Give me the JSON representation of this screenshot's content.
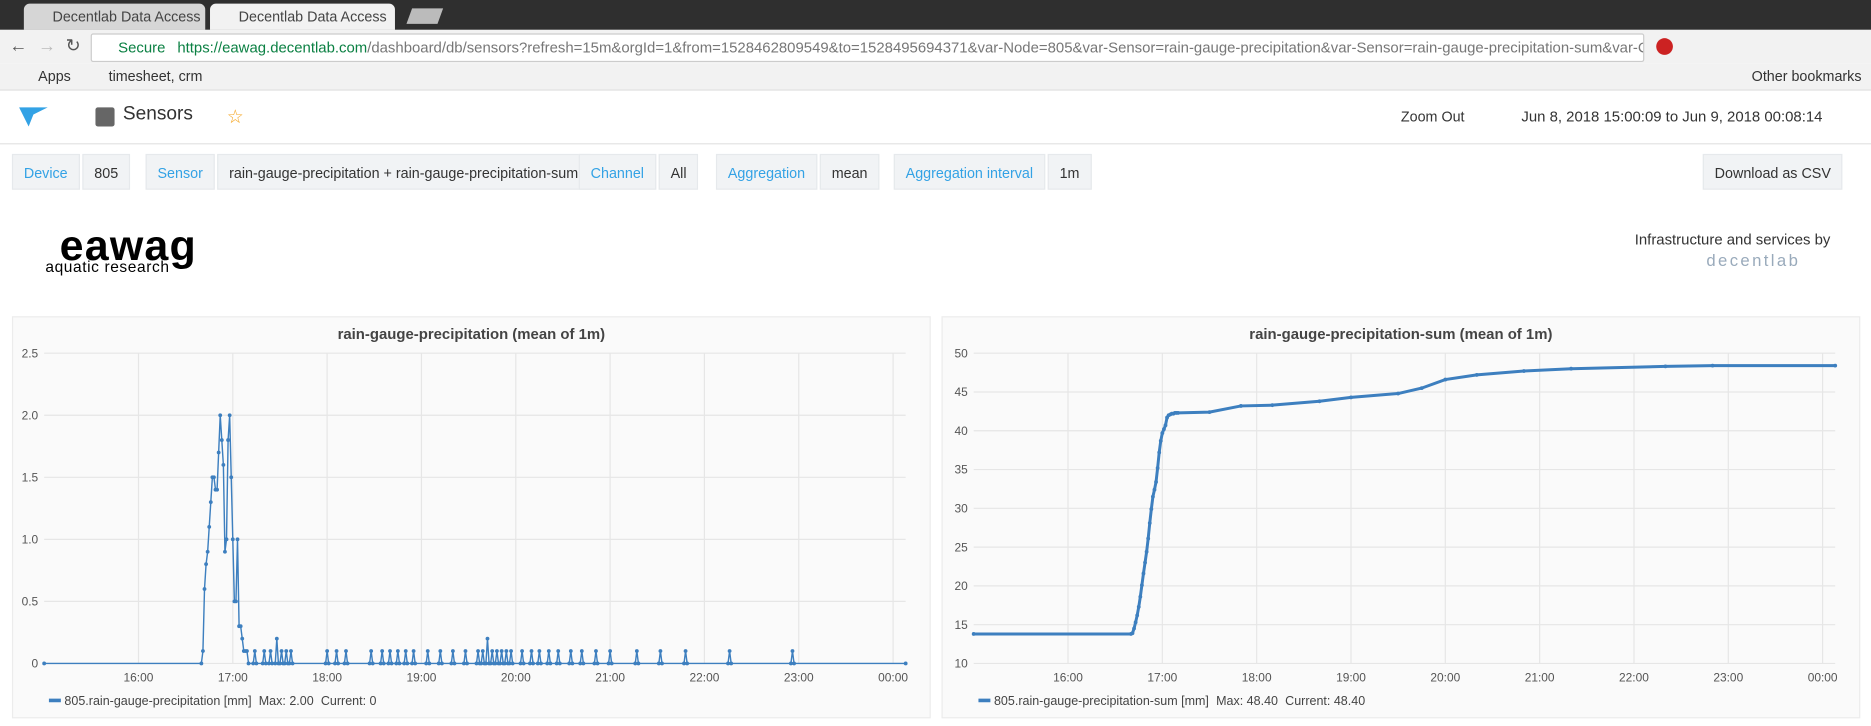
{
  "browser": {
    "tabs": [
      "Decentlab Data Access",
      "Decentlab Data Access"
    ],
    "secure": "Secure",
    "url_host": "https://eawag.decentlab.com",
    "url_path": "/dashboard/db/sensors?refresh=15m&orgId=1&from=1528462809549&to=1528495694371&var-Node=805&var-Sensor=rain-gauge-precipitation&var-Sensor=rain-gauge-precipitation-sum&var-Cha...",
    "bookmarks": [
      "Apps",
      "timesheet, crm"
    ],
    "other_bookmarks": "Other bookmarks"
  },
  "header": {
    "dashboard": "Sensors",
    "zoom_out": "Zoom Out",
    "time_range": "Jun 8, 2018 15:00:09 to Jun 9, 2018 00:08:14"
  },
  "variables": [
    {
      "label": "Device",
      "value": "805"
    },
    {
      "label": "Sensor",
      "value": "rain-gauge-precipitation + rain-gauge-precipitation-sum"
    },
    {
      "label": "Channel",
      "value": "All"
    },
    {
      "label": "Aggregation",
      "value": "mean"
    },
    {
      "label": "Aggregation interval",
      "value": "1m"
    }
  ],
  "download": "Download as CSV",
  "logo": {
    "name": "eawag",
    "tagline": "aquatic research",
    "infra": "Infrastructure and services by",
    "brand": "decentlab"
  },
  "chart_data": [
    {
      "type": "line",
      "title": "rain-gauge-precipitation (mean of 1m)",
      "grid": true,
      "markers": true,
      "x": [
        "15:00",
        "16:40",
        "16:41",
        "16:42",
        "16:43",
        "16:44",
        "16:45",
        "16:46",
        "16:47",
        "16:48",
        "16:49",
        "16:50",
        "16:51",
        "16:52",
        "16:53",
        "16:54",
        "16:55",
        "16:56",
        "16:57",
        "16:58",
        "16:59",
        "17:00",
        "17:01",
        "17:02",
        "17:03",
        "17:04",
        "17:05",
        "17:06",
        "17:07",
        "17:08",
        "17:09",
        "17:10",
        "17:13",
        "17:14",
        "17:15",
        "17:19",
        "17:20",
        "17:21",
        "17:23",
        "17:24",
        "17:25",
        "17:27",
        "17:28",
        "17:29",
        "17:30",
        "17:31",
        "17:32",
        "17:33",
        "17:34",
        "17:35",
        "17:36",
        "17:37",
        "17:38",
        "17:59",
        "18:00",
        "18:01",
        "18:05",
        "18:06",
        "18:07",
        "18:11",
        "18:12",
        "18:13",
        "18:27",
        "18:28",
        "18:29",
        "18:34",
        "18:35",
        "18:36",
        "18:39",
        "18:40",
        "18:41",
        "18:44",
        "18:45",
        "18:46",
        "18:49",
        "18:50",
        "18:51",
        "18:54",
        "18:55",
        "18:56",
        "19:03",
        "19:04",
        "19:05",
        "19:11",
        "19:12",
        "19:13",
        "19:19",
        "19:20",
        "19:21",
        "19:27",
        "19:28",
        "19:29",
        "19:35",
        "19:36",
        "19:37",
        "19:38",
        "19:39",
        "19:40",
        "19:41",
        "19:42",
        "19:43",
        "19:44",
        "19:45",
        "19:46",
        "19:47",
        "19:48",
        "19:49",
        "19:50",
        "19:51",
        "19:52",
        "19:53",
        "19:54",
        "19:55",
        "19:56",
        "19:57",
        "19:58",
        "20:03",
        "20:04",
        "20:05",
        "20:09",
        "20:10",
        "20:11",
        "20:14",
        "20:15",
        "20:16",
        "20:20",
        "20:21",
        "20:22",
        "20:26",
        "20:27",
        "20:28",
        "20:34",
        "20:35",
        "20:36",
        "20:41",
        "20:42",
        "20:43",
        "20:50",
        "20:51",
        "20:52",
        "20:59",
        "21:00",
        "21:01",
        "21:16",
        "21:17",
        "21:18",
        "21:31",
        "21:32",
        "21:33",
        "21:47",
        "21:48",
        "21:49",
        "22:15",
        "22:16",
        "22:17",
        "22:55",
        "22:56",
        "22:57",
        "00:08"
      ],
      "series": [
        {
          "name": "805.rain-gauge-precipitation [mm]",
          "color": "#3d7fbf",
          "values": [
            0,
            0,
            0.1,
            0.6,
            0.8,
            0.9,
            1.1,
            1.3,
            1.5,
            1.5,
            1.4,
            1.4,
            1.7,
            2.0,
            1.8,
            1.6,
            0.9,
            1.0,
            1.8,
            2.0,
            1.5,
            1.0,
            0.5,
            0.5,
            1.0,
            0.3,
            0.3,
            0.2,
            0.1,
            0.1,
            0.1,
            0,
            0,
            0.1,
            0,
            0,
            0.1,
            0,
            0,
            0.1,
            0,
            0,
            0.2,
            0,
            0,
            0.1,
            0,
            0,
            0.1,
            0,
            0,
            0.1,
            0,
            0,
            0.1,
            0,
            0,
            0.1,
            0,
            0,
            0.1,
            0,
            0,
            0.1,
            0,
            0,
            0.1,
            0,
            0,
            0.1,
            0,
            0,
            0.1,
            0,
            0,
            0.1,
            0,
            0,
            0.1,
            0,
            0,
            0.1,
            0,
            0,
            0.1,
            0,
            0,
            0.1,
            0,
            0,
            0.1,
            0,
            0,
            0.1,
            0,
            0,
            0.1,
            0,
            0,
            0.2,
            0,
            0,
            0.1,
            0,
            0,
            0.1,
            0,
            0,
            0.1,
            0,
            0,
            0.1,
            0,
            0,
            0.1,
            0,
            0,
            0.1,
            0,
            0,
            0.1,
            0,
            0,
            0.1,
            0,
            0,
            0.1,
            0,
            0,
            0.1,
            0,
            0,
            0.1,
            0,
            0,
            0.1,
            0,
            0,
            0.1,
            0,
            0,
            0.1,
            0,
            0,
            0.1,
            0,
            0,
            0.1,
            0,
            0,
            0.1,
            0,
            0,
            0.1,
            0,
            0,
            0.1,
            0,
            0
          ]
        }
      ],
      "legend_stats": [
        "Max: 2.00",
        "Current: 0"
      ],
      "xlim": [
        "15:00",
        "00:08"
      ],
      "xticks": [
        "16:00",
        "17:00",
        "18:00",
        "19:00",
        "20:00",
        "21:00",
        "22:00",
        "23:00",
        "00:00"
      ],
      "ylim": [
        0,
        2.5
      ],
      "yticks": [
        0,
        0.5,
        {
          "value": 1,
          "label": "1.0"
        },
        1.5,
        {
          "value": 2,
          "label": "2.0"
        },
        2.5
      ]
    },
    {
      "type": "line",
      "title": "rain-gauge-precipitation-sum (mean of 1m)",
      "grid": true,
      "markers": true,
      "x": [
        "15:00",
        "16:40",
        "16:41",
        "16:42",
        "16:43",
        "16:44",
        "16:45",
        "16:46",
        "16:47",
        "16:48",
        "16:49",
        "16:50",
        "16:51",
        "16:52",
        "16:53",
        "16:54",
        "16:55",
        "16:56",
        "16:57",
        "16:58",
        "16:59",
        "17:00",
        "17:01",
        "17:02",
        "17:03",
        "17:04",
        "17:05",
        "17:06",
        "17:07",
        "17:08",
        "17:09",
        "17:10",
        "17:30",
        "17:50",
        "18:10",
        "18:40",
        "19:00",
        "19:30",
        "19:45",
        "20:00",
        "20:20",
        "20:50",
        "21:20",
        "22:20",
        "22:50",
        "00:08"
      ],
      "series": [
        {
          "name": "805.rain-gauge-precipitation-sum [mm]",
          "color": "#3d7fbf",
          "values": [
            13.8,
            13.8,
            13.9,
            14.5,
            15.3,
            16.2,
            17.3,
            18.6,
            20.1,
            21.6,
            23.0,
            24.4,
            26.1,
            28.1,
            29.9,
            31.5,
            32.4,
            33.4,
            35.2,
            37.2,
            38.7,
            39.7,
            40.2,
            40.7,
            41.7,
            42.0,
            42.1,
            42.2,
            42.2,
            42.3,
            42.3,
            42.3,
            42.4,
            43.2,
            43.3,
            43.8,
            44.3,
            44.8,
            45.5,
            46.6,
            47.2,
            47.7,
            48.0,
            48.3,
            48.4,
            48.4
          ]
        }
      ],
      "legend_stats": [
        "Max: 48.40",
        "Current: 48.40"
      ],
      "xlim": [
        "15:00",
        "00:08"
      ],
      "xticks": [
        "16:00",
        "17:00",
        "18:00",
        "19:00",
        "20:00",
        "21:00",
        "22:00",
        "23:00",
        "00:00"
      ],
      "ylim": [
        10,
        50
      ],
      "yticks": [
        10,
        15,
        20,
        25,
        30,
        35,
        40,
        45,
        50
      ]
    }
  ]
}
